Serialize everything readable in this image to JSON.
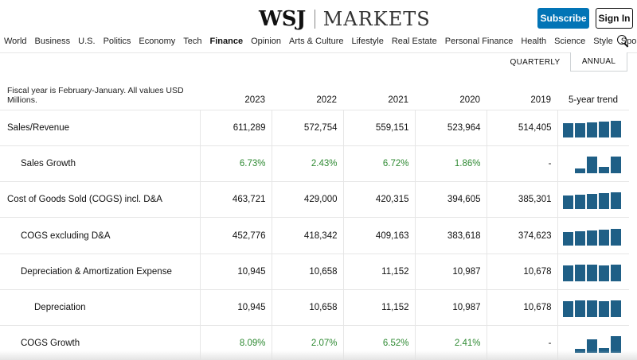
{
  "logo": {
    "brand": "WSJ",
    "section": "MARKETS"
  },
  "header": {
    "subscribe_label": "Subscribe",
    "signin_label": "Sign In"
  },
  "nav": [
    {
      "label": "World",
      "active": false
    },
    {
      "label": "Business",
      "active": false
    },
    {
      "label": "U.S.",
      "active": false
    },
    {
      "label": "Politics",
      "active": false
    },
    {
      "label": "Economy",
      "active": false
    },
    {
      "label": "Tech",
      "active": false
    },
    {
      "label": "Finance",
      "active": true
    },
    {
      "label": "Opinion",
      "active": false
    },
    {
      "label": "Arts & Culture",
      "active": false
    },
    {
      "label": "Lifestyle",
      "active": false
    },
    {
      "label": "Real Estate",
      "active": false
    },
    {
      "label": "Personal Finance",
      "active": false
    },
    {
      "label": "Health",
      "active": false
    },
    {
      "label": "Science",
      "active": false
    },
    {
      "label": "Style",
      "active": false
    },
    {
      "label": "Sports",
      "active": false
    }
  ],
  "period_toggle": {
    "quarterly": "QUARTERLY",
    "annual": "ANNUAL",
    "selected": "annual"
  },
  "table": {
    "header_note": "Fiscal year is February-January. All values USD Millions.",
    "years": [
      "2023",
      "2022",
      "2021",
      "2020",
      "2019"
    ],
    "trend_label": "5-year trend",
    "colors": {
      "trend_bar": "#1f5f86",
      "positive": "#2f8a33"
    },
    "rows": [
      {
        "label": "Sales/Revenue",
        "indent": 0,
        "values": [
          "611,289",
          "572,754",
          "559,151",
          "523,964",
          "514,405"
        ],
        "positive": false,
        "trend": [
          0.84,
          0.88,
          0.9,
          0.93,
          1.0
        ]
      },
      {
        "label": "Sales Growth",
        "indent": 1,
        "values": [
          "6.73%",
          "2.43%",
          "6.72%",
          "1.86%",
          "-"
        ],
        "positive": true,
        "trend": [
          0,
          0.28,
          1.0,
          0.36,
          1.0
        ]
      },
      {
        "label": "Cost of Goods Sold (COGS) incl. D&A",
        "indent": 0,
        "values": [
          "463,721",
          "429,000",
          "420,315",
          "394,605",
          "385,301"
        ],
        "positive": false,
        "trend": [
          0.83,
          0.85,
          0.91,
          0.93,
          1.0
        ]
      },
      {
        "label": "COGS excluding D&A",
        "indent": 1,
        "values": [
          "452,776",
          "418,342",
          "409,163",
          "383,618",
          "374,623"
        ],
        "positive": false,
        "trend": [
          0.83,
          0.85,
          0.91,
          0.93,
          1.0
        ]
      },
      {
        "label": "Depreciation & Amortization Expense",
        "indent": 1,
        "values": [
          "10,945",
          "10,658",
          "11,152",
          "10,987",
          "10,678"
        ],
        "positive": false,
        "trend": [
          0.96,
          0.99,
          1.0,
          0.96,
          0.98
        ]
      },
      {
        "label": "Depreciation",
        "indent": 2,
        "values": [
          "10,945",
          "10,658",
          "11,152",
          "10,987",
          "10,678"
        ],
        "positive": false,
        "trend": [
          0.96,
          0.99,
          1.0,
          0.96,
          0.98
        ]
      },
      {
        "label": "COGS Growth",
        "indent": 1,
        "values": [
          "8.09%",
          "2.07%",
          "6.52%",
          "2.41%",
          "-"
        ],
        "positive": true,
        "trend": [
          0,
          0.26,
          0.81,
          0.3,
          1.0
        ]
      }
    ]
  }
}
